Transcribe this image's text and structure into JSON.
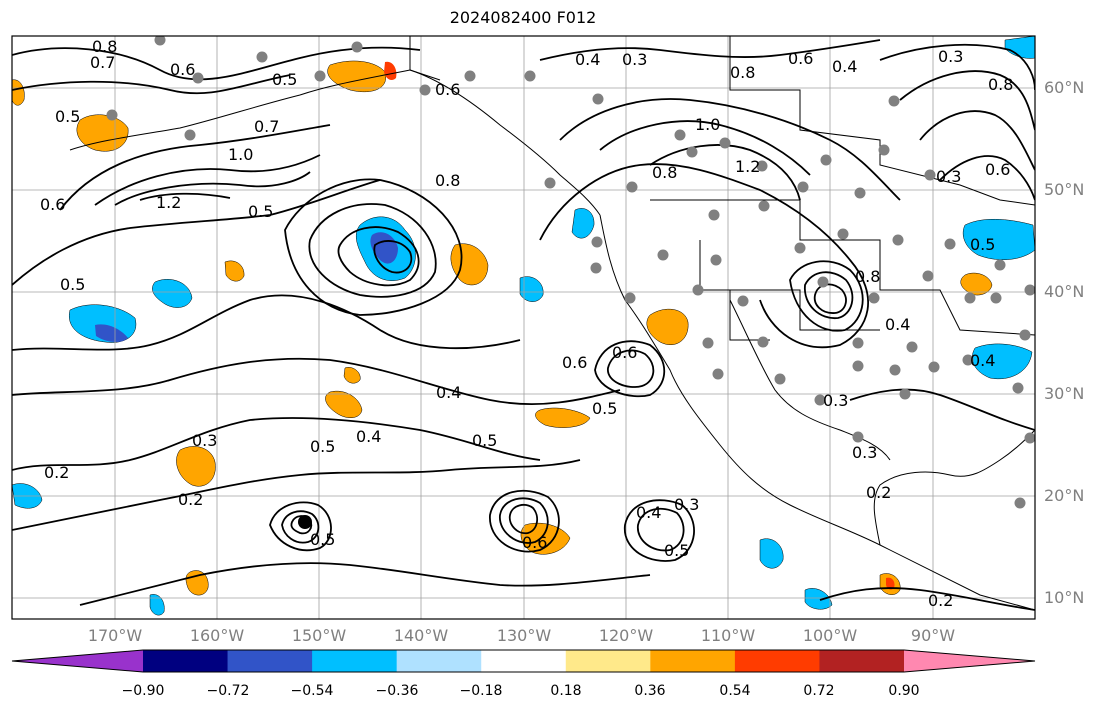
{
  "title": "2024082400 F012",
  "lat_labels": [
    "60°N",
    "50°N",
    "40°N",
    "30°N",
    "20°N",
    "10°N"
  ],
  "lon_labels": [
    "170°W",
    "160°W",
    "150°W",
    "140°W",
    "130°W",
    "120°W",
    "110°W",
    "100°W",
    "90°W"
  ],
  "contour_labels": [
    "0.8",
    "0.7",
    "0.6",
    "0.5",
    "0.5",
    "0.7",
    "1.0",
    "1.2",
    "0.5",
    "0.6",
    "0.8",
    "0.5",
    "0.4",
    "0.3",
    "0.6",
    "0.8",
    "1.0",
    "1.2",
    "0.8",
    "0.4",
    "0.3",
    "0.6",
    "0.8",
    "0.3",
    "0.6",
    "0.5",
    "0.6",
    "0.3",
    "0.4",
    "0.5",
    "0.5",
    "0.4",
    "0.5",
    "0.3",
    "0.2",
    "0.2",
    "0.4",
    "0.5",
    "0.4",
    "0.3",
    "0.5",
    "0.3",
    "0.2",
    "0.2",
    "0.6",
    "0.8",
    "0.4",
    "0.6"
  ],
  "colorbar": {
    "ticks": [
      "−0.90",
      "−0.72",
      "−0.54",
      "−0.36",
      "−0.18",
      "0.18",
      "0.36",
      "0.54",
      "0.72",
      "0.90"
    ],
    "colors": [
      "#9932cc",
      "#000080",
      "#3154c8",
      "#00bfff",
      "#afe1ff",
      "#ffffff",
      "#ffe98a",
      "#ffa500",
      "#ff3c00",
      "#b22222",
      "#ff88b0"
    ]
  },
  "colors": {
    "orange": "#ffa500",
    "yellow": "#ffe98a",
    "cyan": "#00bfff",
    "lightblue": "#afe1ff",
    "blue": "#3154c8",
    "red": "#ff3c00",
    "grid": "#a0a0a0",
    "station": "#808080"
  }
}
